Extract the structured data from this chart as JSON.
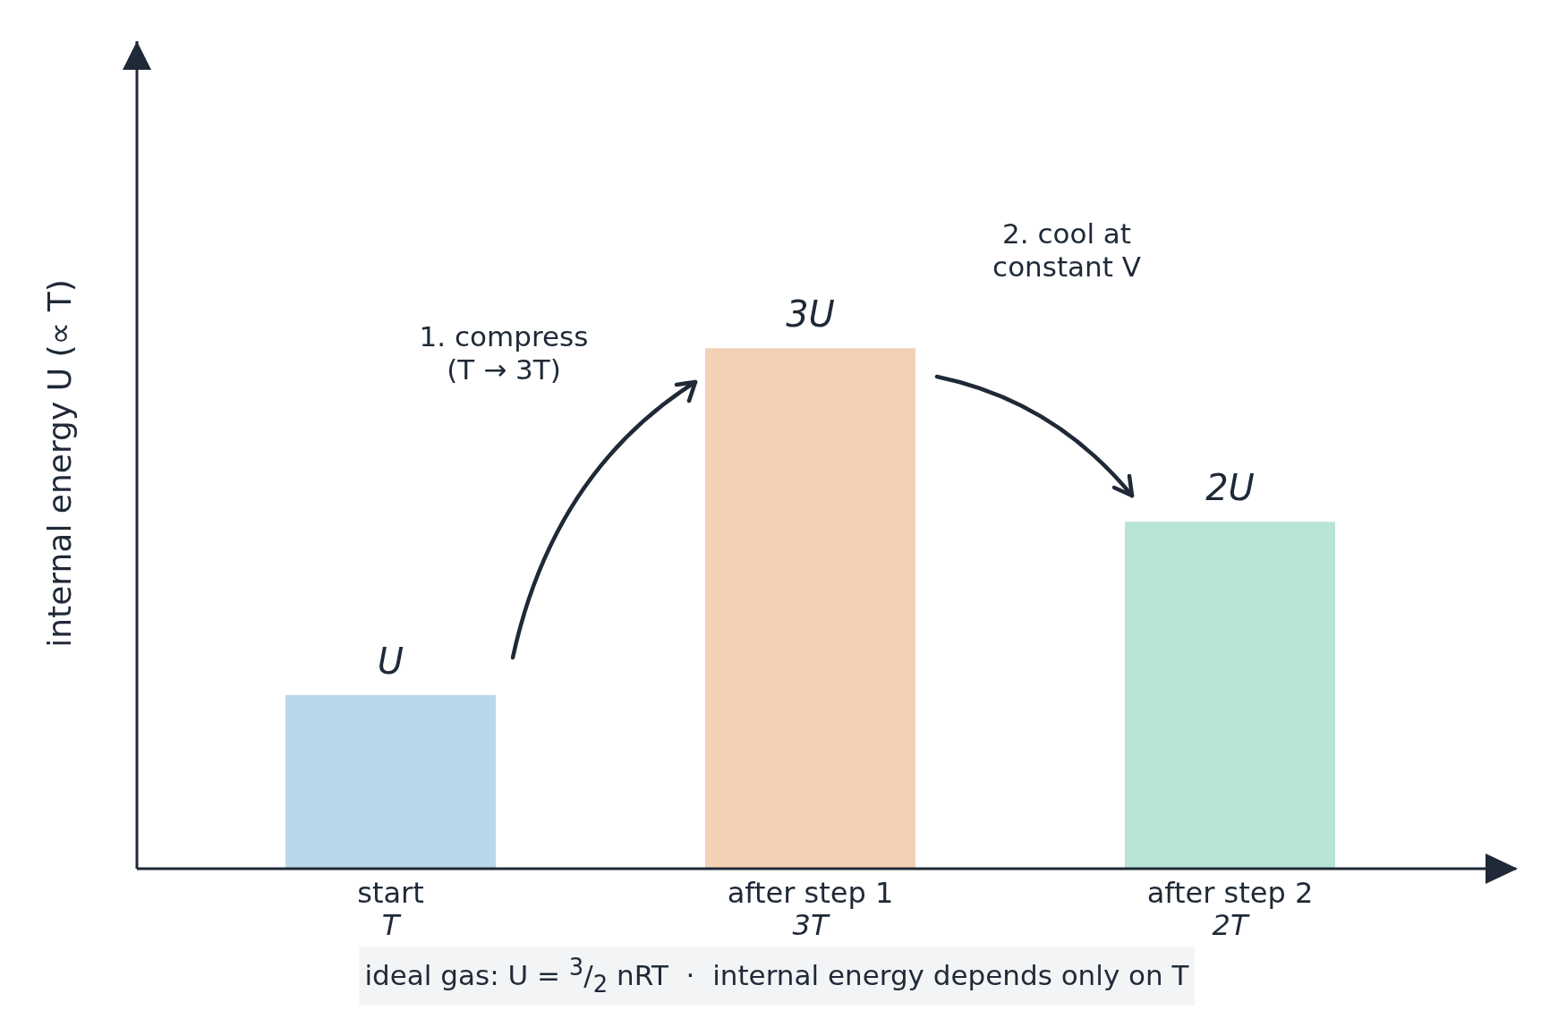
{
  "chart_data": {
    "type": "bar",
    "tick_labels": "x",
    "categories": [
      "start\nT",
      "after step 1\n3T",
      "after step 2\n2T"
    ],
    "values": [
      1,
      3,
      2
    ],
    "colors": [
      "#b8d8ea",
      "#f3d1b5",
      "#b8e4d6"
    ],
    "value_labels": [
      "U",
      "3U",
      "2U"
    ],
    "ylabel": "internal energy U  (∝ T)",
    "annotations": [
      "1. compress\n(T → 3T)",
      "2. cool at\nconstant V",
      "ideal gas: U = $^{3}$/$_{2}$ nRT  ·  internal energy depends only on T"
    ]
  }
}
